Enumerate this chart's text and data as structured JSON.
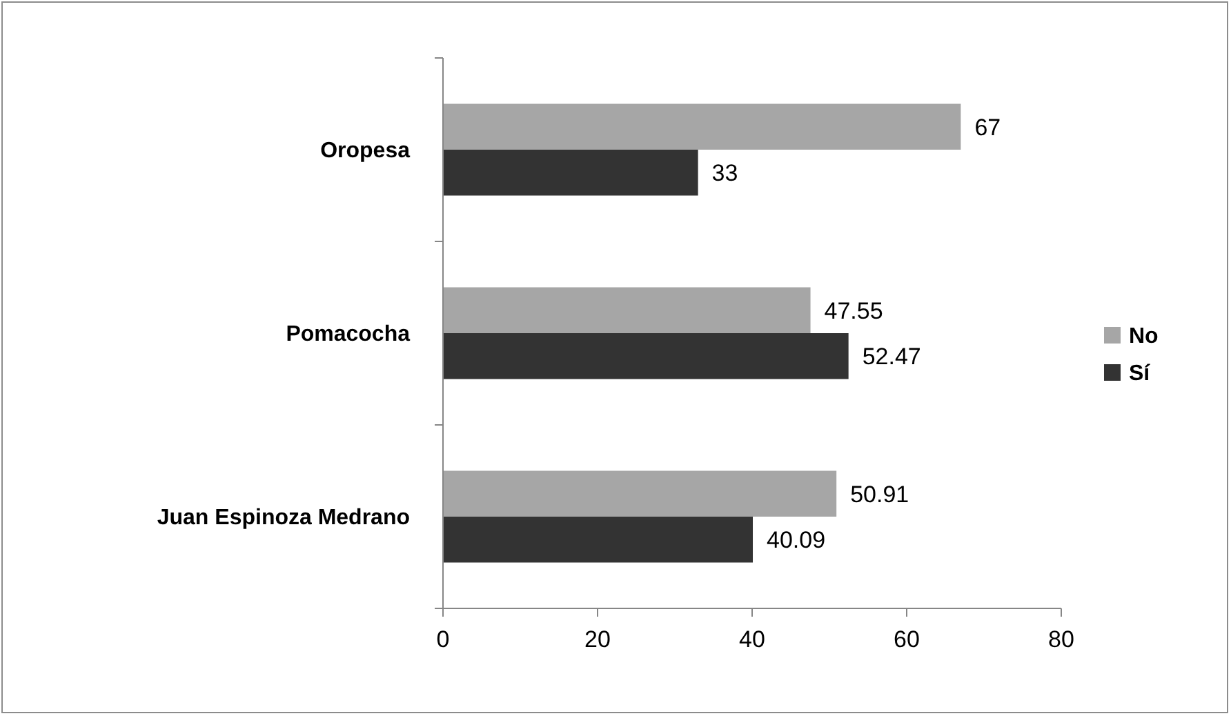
{
  "chart_data": {
    "type": "bar",
    "orientation": "horizontal",
    "categories": [
      "Oropesa",
      "Pomacocha",
      "Juan Espinoza Medrano"
    ],
    "series": [
      {
        "name": "No",
        "color": "#a6a6a6",
        "values": [
          67,
          47.55,
          50.91
        ]
      },
      {
        "name": "Sí",
        "color": "#333333",
        "values": [
          33,
          52.47,
          40.09
        ]
      }
    ],
    "xlim": [
      0,
      80
    ],
    "xticks": [
      0,
      20,
      40,
      60,
      80
    ],
    "grid": false,
    "legend": "right",
    "data_labels": true
  }
}
